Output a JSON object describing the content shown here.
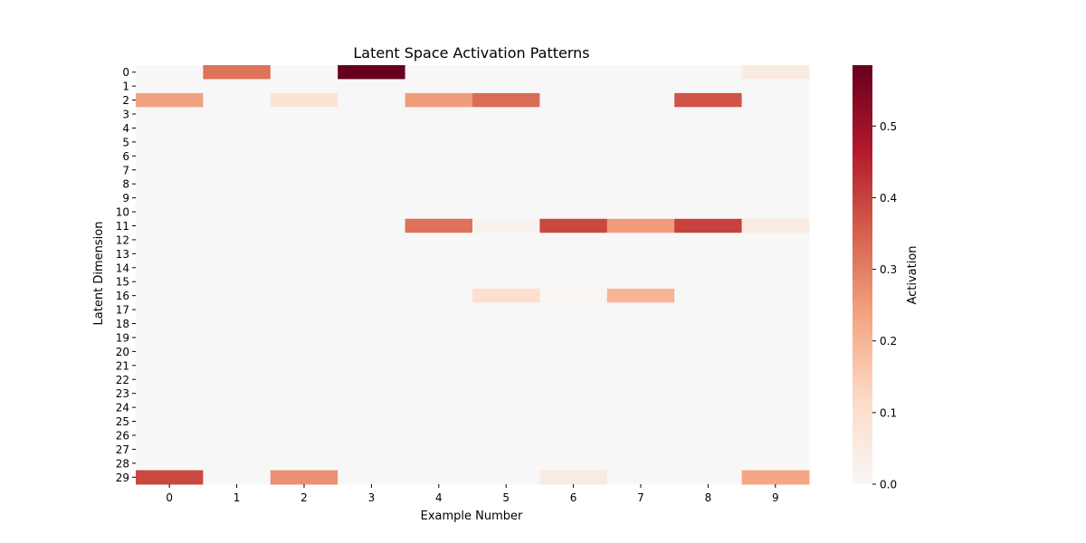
{
  "chart_data": {
    "type": "heatmap",
    "title": "Latent Space Activation Patterns",
    "xlabel": "Example Number",
    "ylabel": "Latent Dimension",
    "x_categories": [
      "0",
      "1",
      "2",
      "3",
      "4",
      "5",
      "6",
      "7",
      "8",
      "9"
    ],
    "y_categories": [
      "0",
      "1",
      "2",
      "3",
      "4",
      "5",
      "6",
      "7",
      "8",
      "9",
      "10",
      "11",
      "12",
      "13",
      "14",
      "15",
      "16",
      "17",
      "18",
      "19",
      "20",
      "21",
      "22",
      "23",
      "24",
      "25",
      "26",
      "27",
      "28",
      "29"
    ],
    "values": [
      [
        0.0,
        0.32,
        0.0,
        0.585,
        0.0,
        0.0,
        0.0,
        0.0,
        0.0,
        0.05
      ],
      [
        0.0,
        0.0,
        0.0,
        0.0,
        0.0,
        0.0,
        0.0,
        0.0,
        0.0,
        0.0
      ],
      [
        0.24,
        0.0,
        0.08,
        0.0,
        0.25,
        0.33,
        0.0,
        0.0,
        0.37,
        0.0
      ],
      [
        0.0,
        0.0,
        0.0,
        0.0,
        0.0,
        0.0,
        0.0,
        0.0,
        0.0,
        0.0
      ],
      [
        0.0,
        0.0,
        0.0,
        0.0,
        0.0,
        0.0,
        0.0,
        0.0,
        0.0,
        0.0
      ],
      [
        0.0,
        0.0,
        0.0,
        0.0,
        0.0,
        0.0,
        0.0,
        0.0,
        0.0,
        0.0
      ],
      [
        0.0,
        0.0,
        0.0,
        0.0,
        0.0,
        0.0,
        0.0,
        0.0,
        0.0,
        0.0
      ],
      [
        0.0,
        0.0,
        0.0,
        0.0,
        0.0,
        0.0,
        0.0,
        0.0,
        0.0,
        0.0
      ],
      [
        0.0,
        0.0,
        0.0,
        0.0,
        0.0,
        0.0,
        0.0,
        0.0,
        0.0,
        0.0
      ],
      [
        0.0,
        0.0,
        0.0,
        0.0,
        0.0,
        0.0,
        0.0,
        0.0,
        0.0,
        0.0
      ],
      [
        0.0,
        0.0,
        0.0,
        0.0,
        0.0,
        0.0,
        0.0,
        0.0,
        0.0,
        0.0
      ],
      [
        0.0,
        0.0,
        0.0,
        0.0,
        0.32,
        0.02,
        0.39,
        0.25,
        0.4,
        0.05
      ],
      [
        0.0,
        0.0,
        0.0,
        0.0,
        0.0,
        0.0,
        0.0,
        0.0,
        0.0,
        0.0
      ],
      [
        0.0,
        0.0,
        0.0,
        0.0,
        0.0,
        0.0,
        0.0,
        0.0,
        0.0,
        0.0
      ],
      [
        0.0,
        0.0,
        0.0,
        0.0,
        0.0,
        0.0,
        0.0,
        0.0,
        0.0,
        0.0
      ],
      [
        0.0,
        0.0,
        0.0,
        0.0,
        0.0,
        0.0,
        0.0,
        0.0,
        0.0,
        0.0
      ],
      [
        0.0,
        0.0,
        0.0,
        0.0,
        0.0,
        0.1,
        0.01,
        0.2,
        0.0,
        0.0
      ],
      [
        0.0,
        0.0,
        0.0,
        0.0,
        0.0,
        0.0,
        0.0,
        0.0,
        0.0,
        0.0
      ],
      [
        0.0,
        0.0,
        0.0,
        0.0,
        0.0,
        0.0,
        0.0,
        0.0,
        0.0,
        0.0
      ],
      [
        0.0,
        0.0,
        0.0,
        0.0,
        0.0,
        0.0,
        0.0,
        0.0,
        0.0,
        0.0
      ],
      [
        0.0,
        0.0,
        0.0,
        0.0,
        0.0,
        0.0,
        0.0,
        0.0,
        0.0,
        0.0
      ],
      [
        0.0,
        0.0,
        0.0,
        0.0,
        0.0,
        0.0,
        0.0,
        0.0,
        0.0,
        0.0
      ],
      [
        0.0,
        0.0,
        0.0,
        0.0,
        0.0,
        0.0,
        0.0,
        0.0,
        0.0,
        0.0
      ],
      [
        0.0,
        0.0,
        0.0,
        0.0,
        0.0,
        0.0,
        0.0,
        0.0,
        0.0,
        0.0
      ],
      [
        0.0,
        0.0,
        0.0,
        0.0,
        0.0,
        0.0,
        0.0,
        0.0,
        0.0,
        0.0
      ],
      [
        0.0,
        0.0,
        0.0,
        0.0,
        0.0,
        0.0,
        0.0,
        0.0,
        0.0,
        0.0
      ],
      [
        0.0,
        0.0,
        0.0,
        0.0,
        0.0,
        0.0,
        0.0,
        0.0,
        0.0,
        0.0
      ],
      [
        0.0,
        0.0,
        0.0,
        0.0,
        0.0,
        0.0,
        0.0,
        0.0,
        0.0,
        0.0
      ],
      [
        0.0,
        0.0,
        0.0,
        0.0,
        0.0,
        0.0,
        0.0,
        0.0,
        0.0,
        0.0
      ],
      [
        0.39,
        0.0,
        0.27,
        0.0,
        0.0,
        0.0,
        0.05,
        0.0,
        0.0,
        0.23
      ]
    ],
    "colorbar": {
      "label": "Activation",
      "vmin": 0.0,
      "vmax": 0.585,
      "ticks": [
        0.0,
        0.1,
        0.2,
        0.3,
        0.4,
        0.5
      ],
      "tick_labels": [
        "0.0",
        "0.1",
        "0.2",
        "0.3",
        "0.4",
        "0.5"
      ]
    },
    "colormap": [
      "#f7f7f7",
      "#fddbc7",
      "#f4a582",
      "#d6604d",
      "#b2182b",
      "#67001f"
    ],
    "grid": false
  }
}
